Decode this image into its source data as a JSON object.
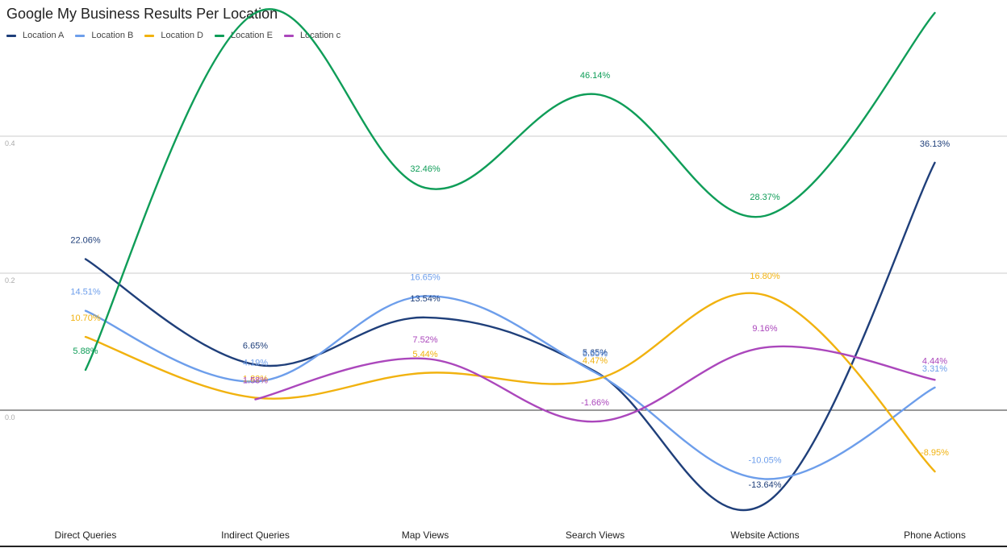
{
  "chart_data": {
    "type": "line",
    "title": "Google My Business Results Per Location",
    "categories": [
      "Direct Queries",
      "Indirect Queries",
      "Map Views",
      "Search Views",
      "Website Actions",
      "Phone Actions"
    ],
    "ylim": [
      -0.14,
      0.56
    ],
    "yticks": [
      0.0,
      0.2,
      0.4
    ],
    "ytick_labels": [
      "0.0",
      "0.2",
      "0.4"
    ],
    "legend_position": "top-left",
    "curve": "smooth",
    "series": [
      {
        "name": "Location A",
        "color": "#1f3f7a",
        "values": [
          0.2206,
          0.0665,
          0.1354,
          0.0565,
          -0.1364,
          0.3613
        ],
        "labels": [
          "22.06%",
          "6.65%",
          "13.54%",
          "5.65%",
          "-13.64%",
          "36.13%"
        ]
      },
      {
        "name": "Location B",
        "color": "#6d9eeb",
        "values": [
          0.1451,
          0.0419,
          0.1665,
          0.055,
          -0.1005,
          0.0331
        ],
        "labels": [
          "14.51%",
          "4.19%",
          "16.65%",
          "5.50%",
          "-10.05%",
          "3.31%"
        ]
      },
      {
        "name": "Location D",
        "color": "#f1b20f",
        "values": [
          0.107,
          0.0182,
          0.0544,
          0.0447,
          0.168,
          -0.0895
        ],
        "labels": [
          "10.70%",
          "1.82%",
          "5.44%",
          "4.47%",
          "16.80%",
          "-8.95%"
        ]
      },
      {
        "name": "Location E",
        "color": "#0f9d58",
        "values": [
          0.0588,
          0.58,
          0.3246,
          0.4614,
          0.2837,
          0.58
        ],
        "labels": [
          "5.88%",
          "",
          "32.46%",
          "46.14%",
          "28.37%",
          ""
        ]
      },
      {
        "name": "Location c",
        "color": "#ab47bc",
        "values": [
          null,
          0.0158,
          0.0752,
          -0.0166,
          0.0916,
          0.0444
        ],
        "labels": [
          "",
          "1.58%",
          "7.52%",
          "-1.66%",
          "9.16%",
          "4.44%"
        ]
      }
    ]
  }
}
